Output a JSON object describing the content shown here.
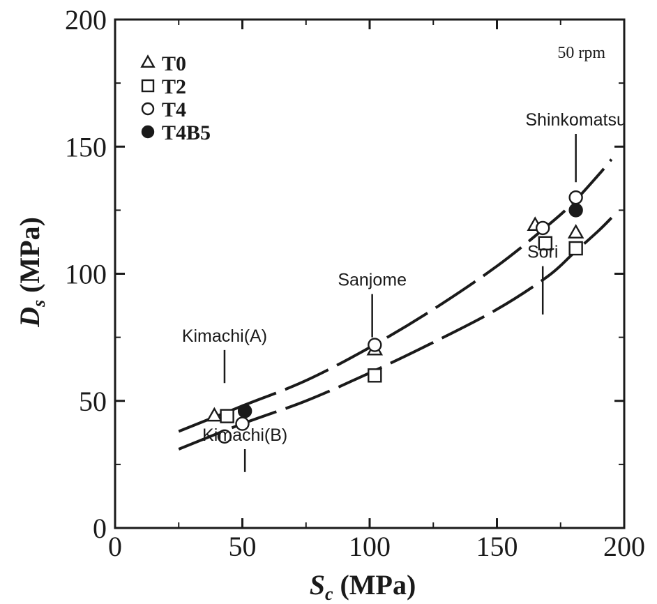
{
  "chart_data": {
    "type": "scatter",
    "title": "",
    "xlabel_main": "S",
    "xlabel_sub": "c",
    "xlabel_unit": "(MPa)",
    "ylabel_main": "D",
    "ylabel_sub": "s",
    "ylabel_unit": "(MPa)",
    "xlim": [
      0,
      200
    ],
    "ylim": [
      0,
      200
    ],
    "xticks": [
      "0",
      "50",
      "100",
      "150",
      "200"
    ],
    "yticks": [
      "0",
      "50",
      "100",
      "150",
      "200"
    ],
    "grid": false,
    "legend_position": "top-left",
    "condition_label": "50 rpm",
    "series": [
      {
        "name": "T0",
        "marker": "open-triangle",
        "points": [
          [
            39,
            44
          ],
          [
            102,
            70
          ],
          [
            165,
            119
          ],
          [
            181,
            116
          ]
        ]
      },
      {
        "name": "T2",
        "marker": "open-square",
        "points": [
          [
            44,
            44
          ],
          [
            102,
            60
          ],
          [
            169,
            112
          ],
          [
            181,
            110
          ]
        ]
      },
      {
        "name": "T4",
        "marker": "open-circle",
        "points": [
          [
            43,
            36
          ],
          [
            50,
            41
          ],
          [
            102,
            72
          ],
          [
            168,
            118
          ],
          [
            181,
            130
          ]
        ]
      },
      {
        "name": "T4B5",
        "marker": "filled-circle",
        "points": [
          [
            51,
            46
          ],
          [
            181,
            125
          ]
        ]
      }
    ],
    "curves": [
      {
        "style": "long-dash",
        "points": [
          [
            25,
            38
          ],
          [
            50,
            48
          ],
          [
            75,
            58
          ],
          [
            100,
            71
          ],
          [
            125,
            86
          ],
          [
            150,
            103
          ],
          [
            170,
            119
          ],
          [
            180,
            128
          ],
          [
            190,
            139
          ],
          [
            195,
            145
          ]
        ]
      },
      {
        "style": "long-dash",
        "points": [
          [
            25,
            31
          ],
          [
            50,
            41
          ],
          [
            75,
            50
          ],
          [
            100,
            61
          ],
          [
            125,
            73
          ],
          [
            150,
            86
          ],
          [
            170,
            99
          ],
          [
            180,
            108
          ],
          [
            190,
            117
          ],
          [
            195,
            122
          ]
        ]
      }
    ],
    "annotations": [
      {
        "text": "Kimachi(A)",
        "leader_from": [
          43,
          70
        ],
        "leader_to": [
          43,
          57
        ]
      },
      {
        "text": "Kimachi(B)",
        "leader_from": [
          51,
          31
        ],
        "leader_to": [
          51,
          22
        ]
      },
      {
        "text": "Sanjome",
        "leader_from": [
          101,
          92
        ],
        "leader_to": [
          101,
          75
        ]
      },
      {
        "text": "Shinkomatsu",
        "leader_from": [
          181,
          155
        ],
        "leader_to": [
          181,
          136
        ]
      },
      {
        "text": "Sori",
        "leader_from": [
          168,
          103
        ],
        "leader_to": [
          168,
          84
        ]
      }
    ]
  }
}
